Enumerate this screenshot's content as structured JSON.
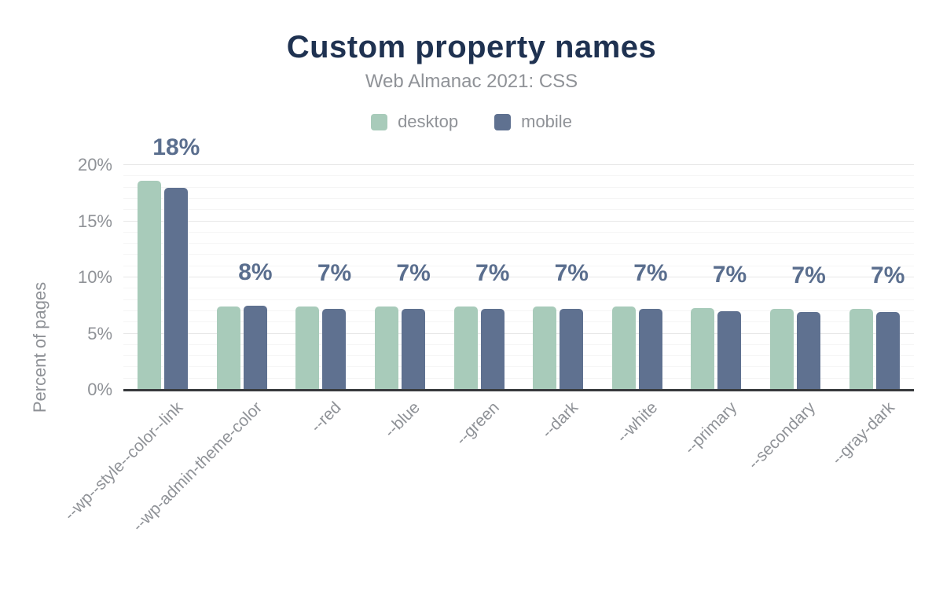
{
  "chart": {
    "title": "Custom property names",
    "subtitle": "Web Almanac 2021: CSS",
    "y_axis_title": "Percent of pages",
    "legend": [
      {
        "id": "desktop",
        "label": "desktop"
      },
      {
        "id": "mobile",
        "label": "mobile"
      }
    ],
    "colors": {
      "desktop": "#a8cbba",
      "mobile": "#5f7190",
      "title": "#1f3251",
      "muted_text": "#8f9297",
      "data_label": "#5a6e8e",
      "axis_line": "#37393c",
      "grid_major": "#e7e7e7",
      "grid_minor": "#f5f5f5",
      "background": "#ffffff"
    }
  },
  "chart_data": {
    "type": "bar",
    "title": "Custom property names",
    "subtitle": "Web Almanac 2021: CSS",
    "categories": [
      "--wp--style--color--link",
      "--wp-admin-theme-color",
      "--red",
      "--blue",
      "--green",
      "--dark",
      "--white",
      "--primary",
      "--secondary",
      "--gray-dark"
    ],
    "series": [
      {
        "name": "desktop",
        "values": [
          18.6,
          7.4,
          7.4,
          7.4,
          7.4,
          7.4,
          7.4,
          7.3,
          7.2,
          7.2
        ]
      },
      {
        "name": "mobile",
        "values": [
          18.0,
          7.5,
          7.2,
          7.2,
          7.2,
          7.2,
          7.2,
          7.0,
          6.9,
          6.9
        ]
      }
    ],
    "data_labels": [
      "18%",
      "8%",
      "7%",
      "7%",
      "7%",
      "7%",
      "7%",
      "7%",
      "7%",
      "7%"
    ],
    "xlabel": "",
    "ylabel": "Percent of pages",
    "ylim": [
      0,
      20
    ],
    "yticks": [
      {
        "value": 0,
        "label": "0%"
      },
      {
        "value": 5,
        "label": "5%"
      },
      {
        "value": 10,
        "label": "10%"
      },
      {
        "value": 15,
        "label": "15%"
      },
      {
        "value": 20,
        "label": "20%"
      }
    ],
    "grid": "horizontal minor lines every 1%, major every 5%",
    "legend_position": "top-center"
  }
}
